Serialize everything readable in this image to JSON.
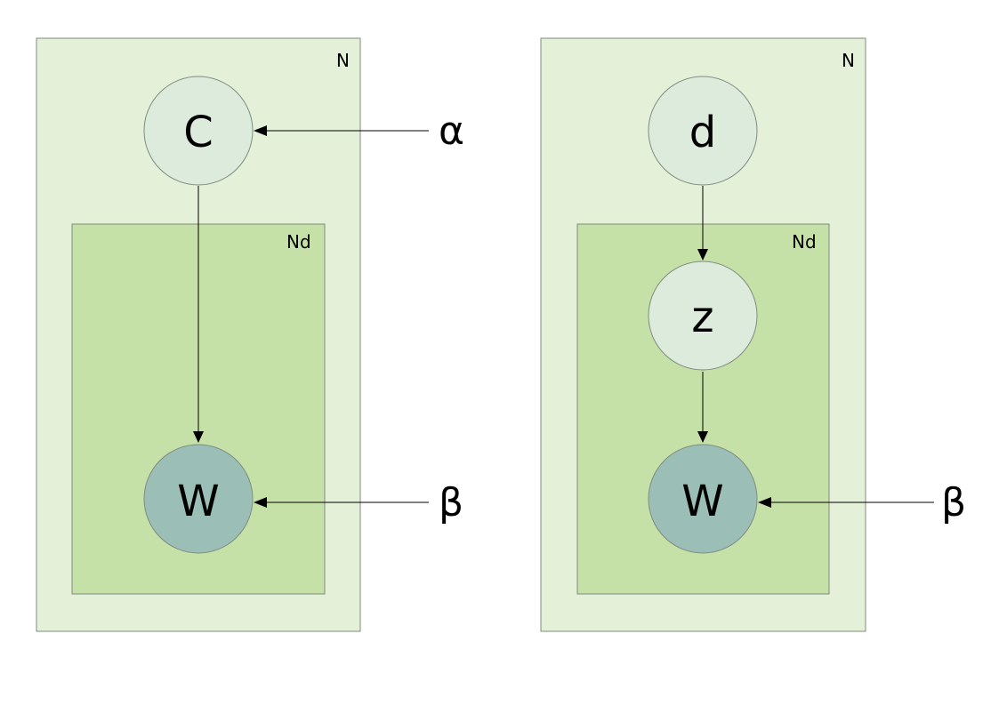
{
  "left_model": {
    "outer_plate_label": "N",
    "inner_plate_label": "Nd",
    "top_node": "C",
    "bottom_node": "W",
    "param_top": "α",
    "param_bottom": "β"
  },
  "right_model": {
    "outer_plate_label": "N",
    "inner_plate_label": "Nd",
    "top_node": "d",
    "middle_node": "z",
    "bottom_node": "W",
    "param_bottom": "β"
  },
  "colors": {
    "outer_plate": "#e4f0d8",
    "inner_plate": "#c6e1a8",
    "latent_node": "#dcebdc",
    "observed_node": "#9bbfb7"
  }
}
